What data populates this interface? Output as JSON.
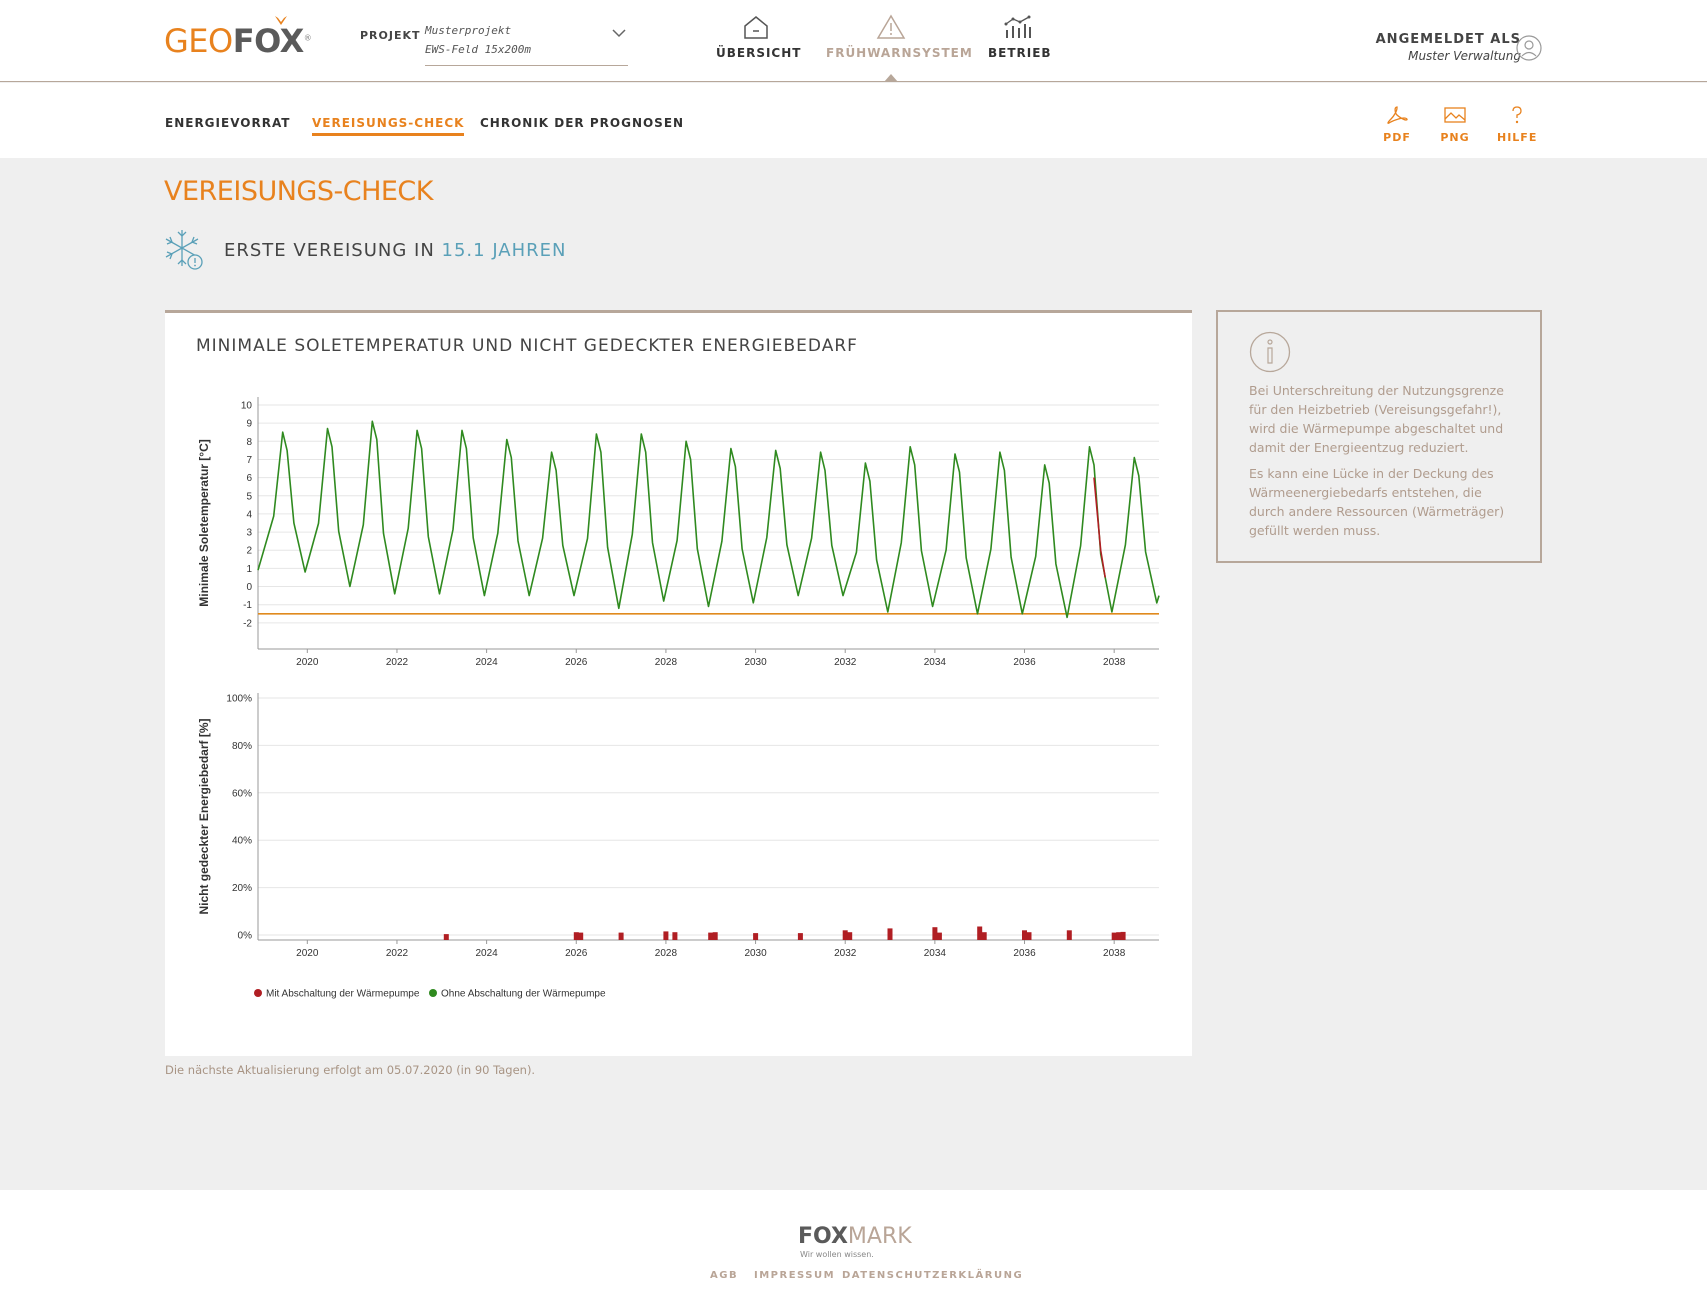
{
  "brand": {
    "logo_geo": "GEO",
    "logo_fox": "FOX",
    "logo_reg": "®"
  },
  "project": {
    "label": "PROJEKT",
    "name": "Musterprojekt",
    "field": "EWS-Feld 15x200m"
  },
  "main_nav": [
    {
      "label": "ÜBERSICHT",
      "icon": "house-icon"
    },
    {
      "label": "FRÜHWARNSYSTEM",
      "icon": "warning-icon",
      "active": true
    },
    {
      "label": "BETRIEB",
      "icon": "bar-chart-icon"
    }
  ],
  "user": {
    "label": "ANGEMELDET ALS",
    "name": "Muster Verwaltung",
    "icon": "user-icon"
  },
  "sub_nav": [
    {
      "label": "ENERGIEVORRAT"
    },
    {
      "label": "VEREISUNGS-CHECK",
      "active": true
    },
    {
      "label": "CHRONIK DER PROGNOSEN"
    }
  ],
  "tools": [
    {
      "label": "PDF",
      "icon": "pdf-icon"
    },
    {
      "label": "PNG",
      "icon": "image-icon"
    },
    {
      "label": "HILFE",
      "icon": "question-icon"
    }
  ],
  "page": {
    "title": "VEREISUNGS-CHECK",
    "alert_prefix": "ERSTE VEREISUNG IN",
    "alert_value": "15.1 JAHREN",
    "alert_icon": "snowflake-warning-icon"
  },
  "card": {
    "title": "MINIMALE SOLETEMPERATUR UND NICHT GEDECKTER ENERGIEBEDARF"
  },
  "chart_data": [
    {
      "type": "line",
      "ylabel": "Minimale Soletemperatur [°C]",
      "ylim": [
        -3,
        10
      ],
      "yticks": [
        10,
        9,
        8,
        7,
        6,
        5,
        4,
        3,
        2,
        1,
        0,
        -1,
        -2
      ],
      "xlim": [
        2018.9,
        2039
      ],
      "xticks": [
        "2020",
        "2022",
        "2024",
        "2026",
        "2028",
        "2030",
        "2032",
        "2034",
        "2036",
        "2038"
      ],
      "threshold": {
        "value": -1.5,
        "color": "#e08a1e"
      },
      "series": [
        {
          "name": "Ohne Abschaltung der Wärmepumpe",
          "color": "#2f8a1f",
          "peaks": [
            8.5,
            8.7,
            9.1,
            8.6,
            8.6,
            8.1,
            7.4,
            8.4,
            8.4,
            8.0,
            7.6,
            7.5,
            7.4,
            6.8,
            7.7,
            7.3,
            7.4,
            6.7,
            7.7,
            7.1
          ],
          "troughs": [
            0.8,
            0.0,
            -0.4,
            -0.4,
            -0.5,
            -0.5,
            -0.5,
            -1.2,
            -0.8,
            -1.1,
            -0.9,
            -0.5,
            -0.5,
            -1.4,
            -1.1,
            -1.5,
            -1.5,
            -1.7,
            -1.4,
            -0.9
          ]
        },
        {
          "name": "Mit Abschaltung der Wärmepumpe",
          "color": "#b01e23"
        }
      ]
    },
    {
      "type": "bar",
      "ylabel": "Nicht gedeckter Energiebedarf [%]",
      "ylim": [
        0,
        100
      ],
      "yticks": [
        "100%",
        "80%",
        "60%",
        "40%",
        "20%",
        "0%"
      ],
      "xticks": [
        "2020",
        "2022",
        "2024",
        "2026",
        "2028",
        "2030",
        "2032",
        "2034",
        "2036",
        "2038"
      ],
      "series": [
        {
          "name": "Mit Abschaltung der Wärmepumpe",
          "color": "#b01e23",
          "bars": [
            {
              "year": 2023.1,
              "value": 0.4
            },
            {
              "year": 2026.0,
              "value": 1.2
            },
            {
              "year": 2026.1,
              "value": 1.0
            },
            {
              "year": 2027.0,
              "value": 1.0
            },
            {
              "year": 2028.0,
              "value": 1.5
            },
            {
              "year": 2028.2,
              "value": 1.2
            },
            {
              "year": 2029.0,
              "value": 1.0
            },
            {
              "year": 2029.1,
              "value": 1.2
            },
            {
              "year": 2030.0,
              "value": 0.8
            },
            {
              "year": 2031.0,
              "value": 0.8
            },
            {
              "year": 2032.0,
              "value": 2.0
            },
            {
              "year": 2032.1,
              "value": 1.2
            },
            {
              "year": 2033.0,
              "value": 2.8
            },
            {
              "year": 2034.0,
              "value": 3.3
            },
            {
              "year": 2034.1,
              "value": 1.0
            },
            {
              "year": 2035.0,
              "value": 3.6
            },
            {
              "year": 2035.1,
              "value": 1.2
            },
            {
              "year": 2036.0,
              "value": 2.0
            },
            {
              "year": 2036.1,
              "value": 1.2
            },
            {
              "year": 2037.0,
              "value": 2.0
            },
            {
              "year": 2038.0,
              "value": 1.0
            },
            {
              "year": 2038.1,
              "value": 1.2
            },
            {
              "year": 2038.2,
              "value": 1.3
            }
          ]
        }
      ]
    }
  ],
  "legend": [
    {
      "label": "Mit Abschaltung der Wärmepumpe",
      "color": "#b01e23"
    },
    {
      "label": "Ohne Abschaltung der Wärmepumpe",
      "color": "#2f8a1f"
    }
  ],
  "info": {
    "icon": "info-icon",
    "p1": "Bei Unterschreitung der Nutzungsgrenze für den Heizbetrieb (Vereisungsgefahr!), wird die Wärmepumpe abgeschaltet und damit der Energieentzug reduziert.",
    "p2": "Es kann eine Lücke in der Deckung des Wärmeenergiebedarfs entstehen, die durch andere Ressourcen (Wärmeträger) gefüllt werden muss."
  },
  "update_note": "Die nächste Aktualisierung erfolgt am 05.07.2020 (in 90 Tagen).",
  "footer": {
    "logo_fox": "FOX",
    "logo_mark": "MARK",
    "tagline": "Wir wollen wissen.",
    "links": [
      "AGB",
      "IMPRESSUM",
      "DATENSCHUTZERKLÄRUNG"
    ]
  }
}
